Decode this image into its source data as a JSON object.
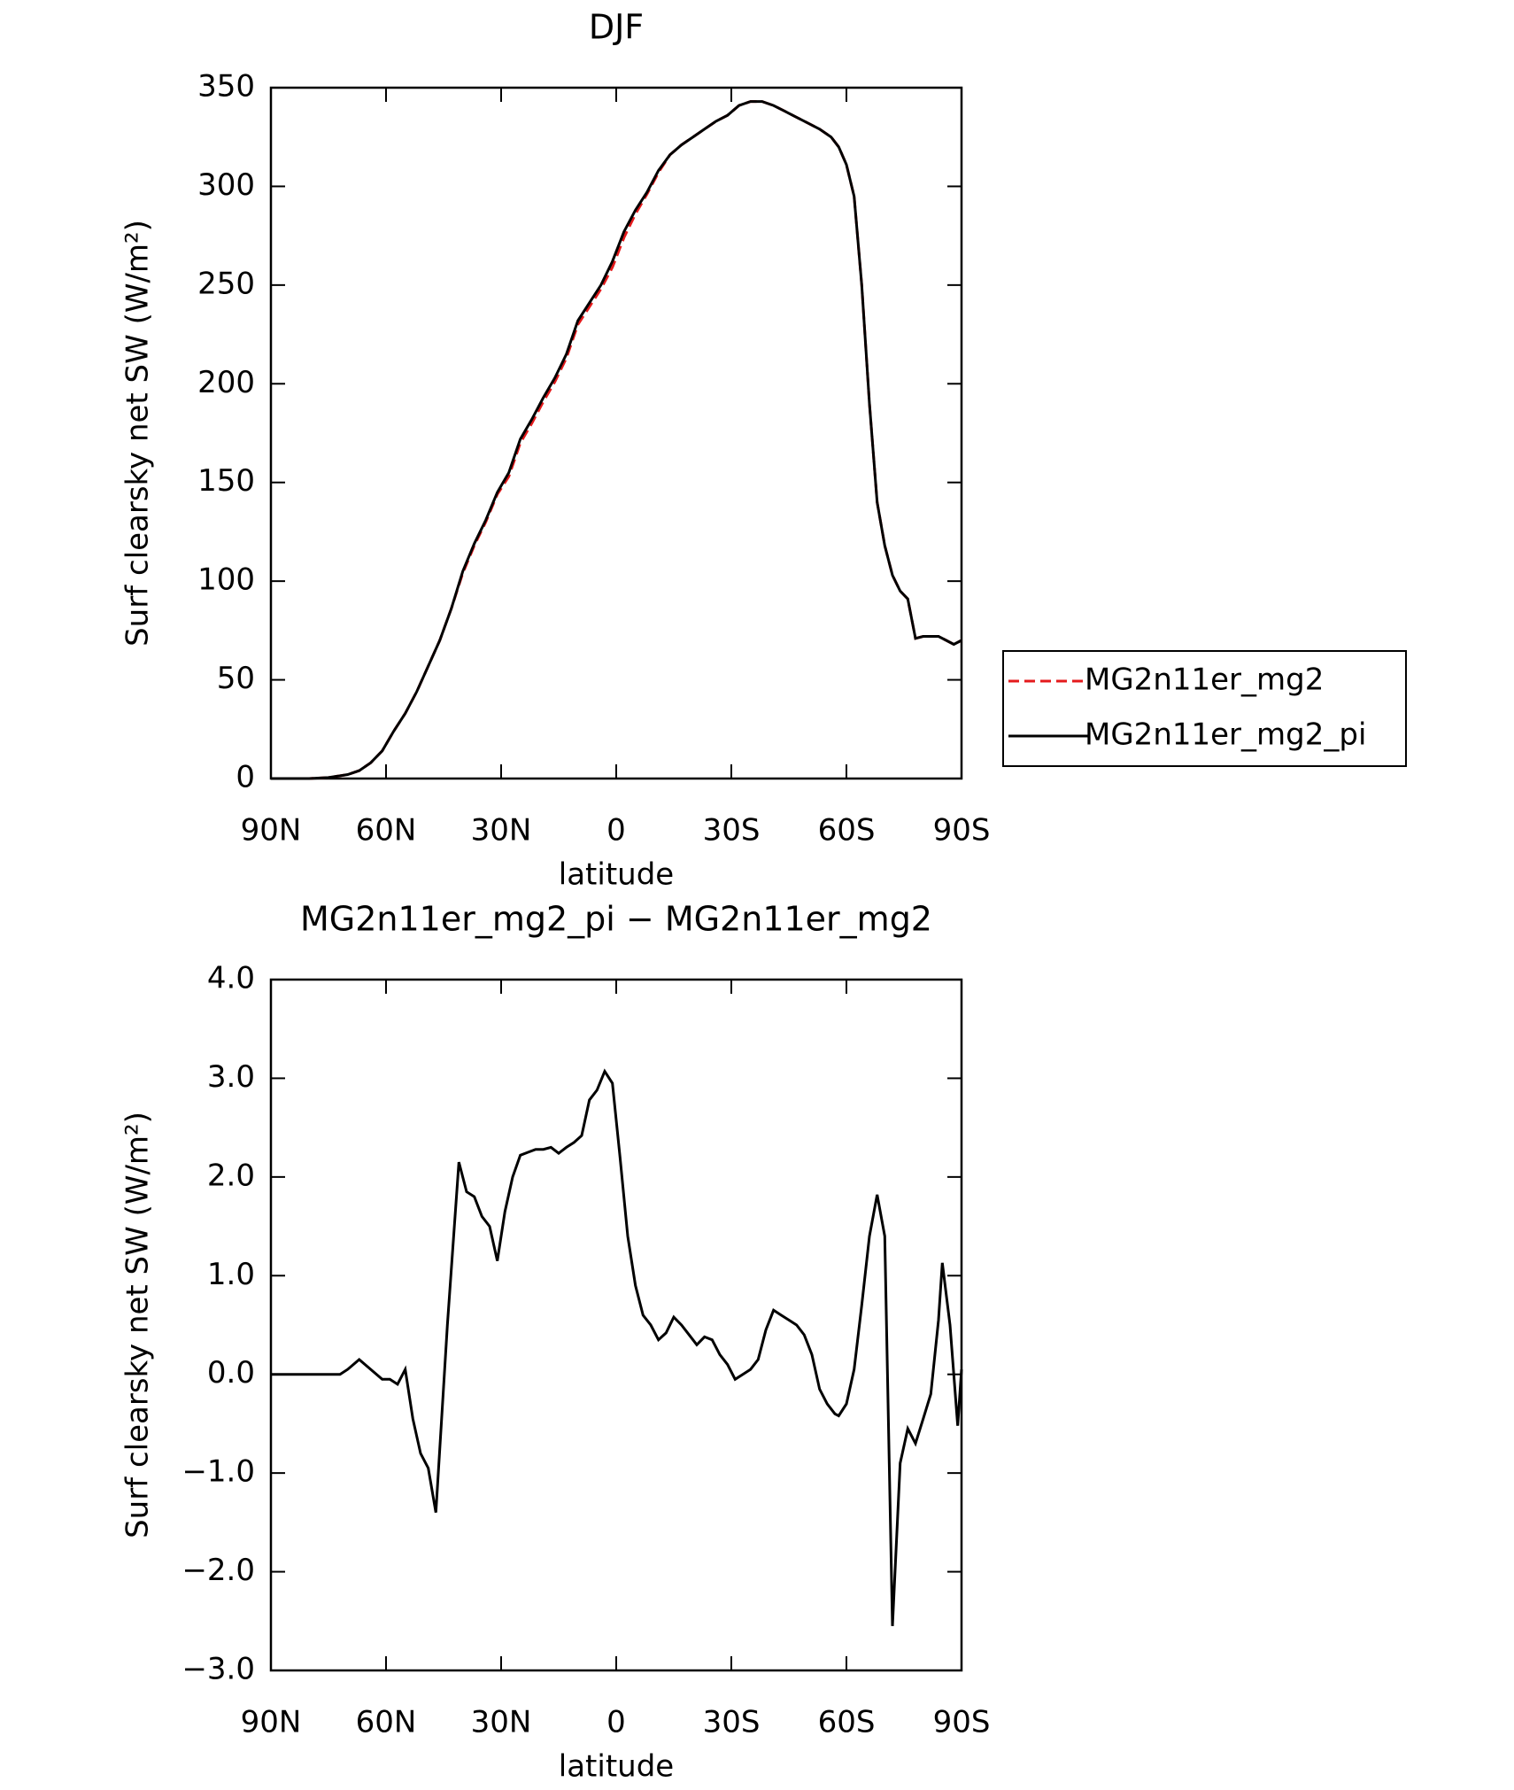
{
  "chart_data": [
    {
      "type": "line",
      "title": "DJF",
      "x_label": "latitude",
      "y_label": "Surf clearsky net SW (W/m²)",
      "x": [
        90,
        85,
        80,
        75,
        70,
        67,
        64,
        61,
        58,
        55,
        52,
        49,
        46,
        43,
        40,
        37,
        34,
        31,
        28,
        25,
        22,
        19,
        16,
        13,
        10,
        7,
        4,
        1,
        -2,
        -5,
        -8,
        -11,
        -14,
        -17,
        -20,
        -23,
        -26,
        -29,
        -32,
        -35,
        -38,
        -41,
        -44,
        -47,
        -50,
        -53,
        -56,
        -58,
        -60,
        -62,
        -64,
        -66,
        -68,
        -70,
        -72,
        -74,
        -76,
        -78,
        -80,
        -82,
        -84,
        -86,
        -88,
        -90
      ],
      "series": [
        {
          "name": "MG2n11er_mg2",
          "color": "#e41a1c",
          "style": "dashed",
          "values": [
            0,
            0,
            0,
            0.5,
            2,
            4,
            8,
            14,
            24,
            33,
            44,
            57,
            70,
            86,
            104,
            118,
            130,
            144,
            153,
            170,
            180,
            191,
            201,
            213,
            230,
            239,
            248,
            259,
            274,
            286,
            296,
            307,
            316,
            321,
            325,
            329,
            333,
            336,
            341,
            343,
            343,
            341,
            338,
            335,
            332,
            329,
            325,
            320,
            311,
            295,
            250,
            190,
            140,
            118,
            103,
            95,
            91,
            71,
            72,
            72,
            72,
            70,
            68,
            70
          ]
        },
        {
          "name": "MG2n11er_mg2_pi",
          "color": "#000000",
          "style": "solid",
          "values": [
            0,
            0,
            0,
            0.5,
            2,
            4,
            8,
            14,
            24,
            33,
            44,
            57,
            70,
            86,
            105,
            119,
            131,
            145,
            155,
            172,
            182,
            193,
            203,
            215,
            232,
            241,
            250,
            262,
            277,
            288,
            297,
            308,
            316,
            321,
            325,
            329,
            333,
            336,
            341,
            343,
            343,
            341,
            338,
            335,
            332,
            329,
            325,
            320,
            311,
            295,
            250,
            190,
            140,
            118,
            103,
            95,
            91,
            71,
            72,
            72,
            72,
            70,
            68,
            70
          ]
        }
      ],
      "xlim": [
        90,
        -90
      ],
      "xticks": [
        {
          "value": 90,
          "label": "90N"
        },
        {
          "value": 60,
          "label": "60N"
        },
        {
          "value": 30,
          "label": "30N"
        },
        0,
        {
          "value": -30,
          "label": "30S"
        },
        {
          "value": -60,
          "label": "60S"
        },
        {
          "value": -90,
          "label": "90S"
        }
      ],
      "ylim": [
        0,
        350
      ],
      "yticks": [
        0,
        50,
        100,
        150,
        200,
        250,
        300,
        350
      ],
      "legend": "outside right"
    },
    {
      "type": "line",
      "title": "MG2n11er_mg2_pi − MG2n11er_mg2",
      "x_label": "latitude",
      "y_label": "Surf clearsky net SW (W/m²)",
      "x": [
        90,
        80,
        75,
        72,
        70,
        67,
        64,
        61,
        59,
        57,
        55,
        53,
        51,
        49,
        47,
        44,
        41,
        39,
        37,
        35,
        33,
        31,
        29,
        27,
        25,
        23,
        21,
        19,
        17,
        15,
        13,
        11,
        9,
        7,
        5,
        3,
        1,
        -1,
        -3,
        -5,
        -7,
        -9,
        -11,
        -13,
        -15,
        -17,
        -19,
        -21,
        -23,
        -25,
        -27,
        -29,
        -31,
        -33,
        -35,
        -37,
        -39,
        -41,
        -43,
        -45,
        -47,
        -49,
        -51,
        -53,
        -55,
        -57,
        -58,
        -60,
        -62,
        -64,
        -66,
        -68,
        -70,
        -72,
        -74,
        -76,
        -78,
        -80,
        -82,
        -84,
        -85,
        -87,
        -89,
        -90
      ],
      "series": [
        {
          "name": "MG2n11er_mg2_pi − MG2n11er_mg2",
          "color": "#000000",
          "style": "solid",
          "values": [
            0,
            0,
            0,
            0,
            0.05,
            0.15,
            0.05,
            -0.05,
            -0.05,
            -0.1,
            0.05,
            -0.45,
            -0.8,
            -0.95,
            -1.4,
            0.5,
            2.15,
            1.85,
            1.8,
            1.6,
            1.5,
            1.15,
            1.65,
            2.0,
            2.22,
            2.25,
            2.28,
            2.28,
            2.3,
            2.24,
            2.3,
            2.35,
            2.42,
            2.78,
            2.88,
            3.07,
            2.95,
            2.2,
            1.4,
            0.9,
            0.6,
            0.5,
            0.35,
            0.42,
            0.58,
            0.5,
            0.4,
            0.3,
            0.38,
            0.35,
            0.2,
            0.1,
            -0.05,
            0,
            0.05,
            0.15,
            0.45,
            0.65,
            0.6,
            0.55,
            0.5,
            0.4,
            0.2,
            -0.15,
            -0.3,
            -0.4,
            -0.42,
            -0.3,
            0.05,
            0.7,
            1.4,
            1.82,
            1.4,
            -2.55,
            -0.9,
            -0.55,
            -0.7,
            -0.45,
            -0.2,
            0.55,
            1.13,
            0.5,
            -0.52,
            0.05
          ]
        }
      ],
      "xlim": [
        90,
        -90
      ],
      "xticks": [
        {
          "value": 90,
          "label": "90N"
        },
        {
          "value": 60,
          "label": "60N"
        },
        {
          "value": 30,
          "label": "30N"
        },
        0,
        {
          "value": -30,
          "label": "30S"
        },
        {
          "value": -60,
          "label": "60S"
        },
        {
          "value": -90,
          "label": "90S"
        }
      ],
      "ylim": [
        -3,
        4
      ],
      "yticks": [
        {
          "value": -3,
          "label": "−3.0"
        },
        {
          "value": -2,
          "label": "−2.0"
        },
        {
          "value": -1,
          "label": "−1.0"
        },
        {
          "value": 0,
          "label": "0.0"
        },
        {
          "value": 1,
          "label": "1.0"
        },
        {
          "value": 2,
          "label": "2.0"
        },
        {
          "value": 3,
          "label": "3.0"
        },
        {
          "value": 4,
          "label": "4.0"
        }
      ]
    }
  ]
}
